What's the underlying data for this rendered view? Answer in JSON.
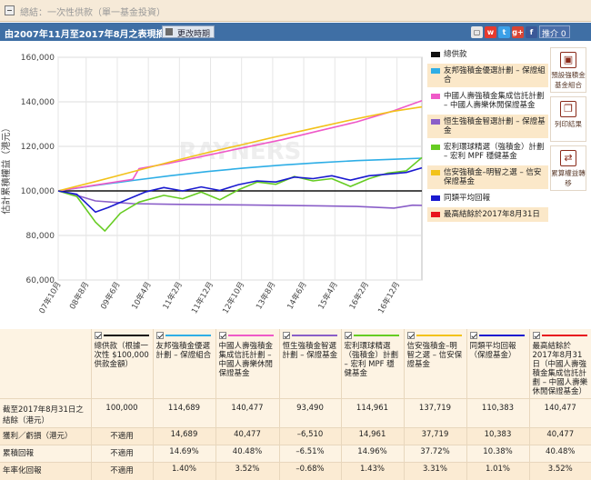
{
  "header": {
    "title": "總結：一次性供款（單一基金投資）"
  },
  "toolbar": {
    "summary": "由2007年11月至2017年8月之表現摘要",
    "change_period": "更改時期",
    "like_label": "推介 0",
    "social_icons": [
      "share-icon",
      "weibo-icon",
      "twitter-icon",
      "googleplus-icon",
      "facebook-icon"
    ]
  },
  "tools": [
    {
      "label": "預設強積金基金組合",
      "icon": "portfolio-icon"
    },
    {
      "label": "列印結果",
      "icon": "print-icon"
    },
    {
      "label": "累算權益轉移",
      "icon": "transfer-icon"
    }
  ],
  "chart_data": {
    "type": "line",
    "ylabel": "估計累積權益（港元）",
    "ylim": [
      60000,
      160000
    ],
    "yticks": [
      "60,000",
      "80,000",
      "100,000",
      "120,000",
      "140,000",
      "160,000"
    ],
    "xticks": [
      "07年10月",
      "08年8月",
      "09年6月",
      "10年4月",
      "11年2月",
      "11年12月",
      "12年10月",
      "13年8月",
      "14年6月",
      "15年4月",
      "16年2月",
      "16年12月"
    ],
    "x_start": "2007-11",
    "x_end": "2017-08",
    "grid": true,
    "legend_position": "right",
    "series": [
      {
        "name": "總供款",
        "color": "#111111",
        "points": [
          [
            0,
            100000
          ],
          [
            117,
            100000
          ]
        ]
      },
      {
        "name": "友邦強積金優選計劃 – 保證組合",
        "color": "#2eaee6",
        "points": [
          [
            0,
            100000
          ],
          [
            12,
            102500
          ],
          [
            24,
            104700
          ],
          [
            36,
            106800
          ],
          [
            48,
            108700
          ],
          [
            60,
            110300
          ],
          [
            72,
            111600
          ],
          [
            84,
            112700
          ],
          [
            96,
            113600
          ],
          [
            108,
            114200
          ],
          [
            117,
            114689
          ]
        ]
      },
      {
        "name": "中國人壽強積金集成信託計劃 – 中國人壽樂休閒保證基金",
        "color": "#ef59c8",
        "points": [
          [
            0,
            100000
          ],
          [
            12,
            102600
          ],
          [
            24,
            105200
          ],
          [
            26,
            110000
          ],
          [
            36,
            112500
          ],
          [
            48,
            116000
          ],
          [
            60,
            119500
          ],
          [
            72,
            123000
          ],
          [
            84,
            127000
          ],
          [
            96,
            131000
          ],
          [
            108,
            136000
          ],
          [
            117,
            140477
          ]
        ]
      },
      {
        "name": "恒生強積金智選計劃 – 保證基金",
        "color": "#8a5ec8",
        "points": [
          [
            0,
            100000
          ],
          [
            6,
            98000
          ],
          [
            12,
            95500
          ],
          [
            24,
            94300
          ],
          [
            36,
            94000
          ],
          [
            48,
            93800
          ],
          [
            60,
            93700
          ],
          [
            72,
            93500
          ],
          [
            84,
            93300
          ],
          [
            96,
            93000
          ],
          [
            108,
            92300
          ],
          [
            114,
            93600
          ],
          [
            117,
            93490
          ]
        ]
      },
      {
        "name": "宏利環球精選（強積金）計劃 – 宏利 MPF 穩健基金",
        "color": "#66cc22",
        "points": [
          [
            0,
            100000
          ],
          [
            6,
            97500
          ],
          [
            12,
            86000
          ],
          [
            15,
            82000
          ],
          [
            20,
            90000
          ],
          [
            26,
            95000
          ],
          [
            34,
            98000
          ],
          [
            40,
            96500
          ],
          [
            46,
            99500
          ],
          [
            52,
            96000
          ],
          [
            58,
            100500
          ],
          [
            64,
            104000
          ],
          [
            70,
            103000
          ],
          [
            76,
            106500
          ],
          [
            82,
            104500
          ],
          [
            88,
            105500
          ],
          [
            94,
            102000
          ],
          [
            100,
            105500
          ],
          [
            106,
            108000
          ],
          [
            112,
            109000
          ],
          [
            117,
            114961
          ]
        ]
      },
      {
        "name": "信安強積金–明智之選 – 信安保證基金",
        "color": "#f2c21a",
        "points": [
          [
            0,
            100000
          ],
          [
            12,
            104200
          ],
          [
            24,
            108600
          ],
          [
            36,
            113000
          ],
          [
            48,
            117200
          ],
          [
            60,
            121000
          ],
          [
            72,
            125000
          ],
          [
            84,
            128700
          ],
          [
            96,
            132400
          ],
          [
            108,
            135800
          ],
          [
            117,
            137719
          ]
        ]
      },
      {
        "name": "同類平均回報",
        "color": "#1a1ad0",
        "points": [
          [
            0,
            100000
          ],
          [
            6,
            98500
          ],
          [
            12,
            90500
          ],
          [
            16,
            92500
          ],
          [
            22,
            96000
          ],
          [
            28,
            99500
          ],
          [
            34,
            101500
          ],
          [
            40,
            100000
          ],
          [
            46,
            101800
          ],
          [
            52,
            100200
          ],
          [
            58,
            102800
          ],
          [
            64,
            104500
          ],
          [
            70,
            104000
          ],
          [
            76,
            106200
          ],
          [
            82,
            105500
          ],
          [
            88,
            106800
          ],
          [
            94,
            104800
          ],
          [
            100,
            106800
          ],
          [
            106,
            107500
          ],
          [
            112,
            108300
          ],
          [
            117,
            110383
          ]
        ]
      },
      {
        "name": "最高結餘於2017年8月31日",
        "color": "#e8141e",
        "points": []
      }
    ]
  },
  "table": {
    "row_labels": [
      "截至2017年8月31日之結餘（港元）",
      "獲利／虧損（港元）",
      "累積回報",
      "年率化回報"
    ],
    "columns": [
      {
        "header": "總供款（根據一次性 $100,000 供款金額）",
        "color": "#111111",
        "values": [
          "100,000",
          "不適用",
          "不適用",
          "不適用"
        ]
      },
      {
        "header": "友邦強積金優選計劃 – 保證組合",
        "color": "#2eaee6",
        "values": [
          "114,689",
          "14,689",
          "14.69%",
          "1.40%"
        ]
      },
      {
        "header": "中國人壽強積金集成信託計劃 – 中國人壽樂休閒保證基金",
        "color": "#ef59c8",
        "values": [
          "140,477",
          "40,477",
          "40.48%",
          "3.52%"
        ]
      },
      {
        "header": "恒生強積金智選計劃 – 保證基金",
        "color": "#8a5ec8",
        "values": [
          "93,490",
          "–6,510",
          "–6.51%",
          "–0.68%"
        ]
      },
      {
        "header": "宏利環球精選（強積金）計劃 – 宏利 MPF 穩健基金",
        "color": "#66cc22",
        "values": [
          "114,961",
          "14,961",
          "14.96%",
          "1.43%"
        ]
      },
      {
        "header": "信安強積金–明智之選 – 信安保證基金",
        "color": "#f2c21a",
        "values": [
          "137,719",
          "37,719",
          "37.72%",
          "3.31%"
        ]
      },
      {
        "header": "同類平均回報（保證基金）",
        "color": "#1a1ad0",
        "values": [
          "110,383",
          "10,383",
          "10.38%",
          "1.01%"
        ]
      },
      {
        "header": "最高結餘於 2017年8月31日（中國人壽強積金集成信託計劃 – 中國人壽樂休閒保證基金）",
        "color": "#e8141e",
        "values": [
          "140,477",
          "40,477",
          "40.48%",
          "3.52%"
        ]
      }
    ]
  }
}
